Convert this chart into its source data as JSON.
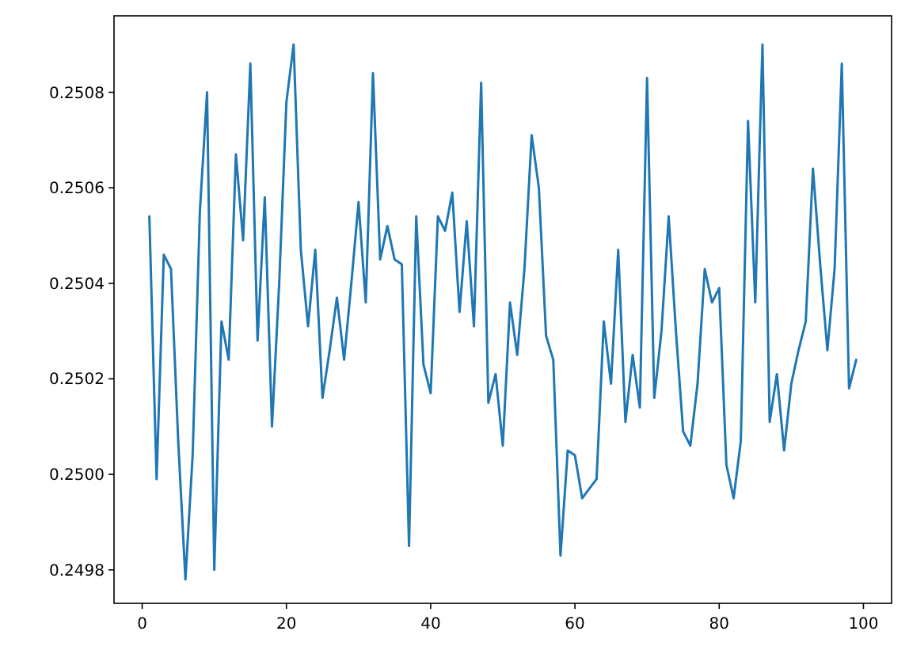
{
  "chart_data": {
    "type": "line",
    "x": [
      1,
      2,
      3,
      4,
      5,
      6,
      7,
      8,
      9,
      10,
      11,
      12,
      13,
      14,
      15,
      16,
      17,
      18,
      19,
      20,
      21,
      22,
      23,
      24,
      25,
      26,
      27,
      28,
      29,
      30,
      31,
      32,
      33,
      34,
      35,
      36,
      37,
      38,
      39,
      40,
      41,
      42,
      43,
      44,
      45,
      46,
      47,
      48,
      49,
      50,
      51,
      52,
      53,
      54,
      55,
      56,
      57,
      58,
      59,
      60,
      61,
      62,
      63,
      64,
      65,
      66,
      67,
      68,
      69,
      70,
      71,
      72,
      73,
      74,
      75,
      76,
      77,
      78,
      79,
      80,
      81,
      82,
      83,
      84,
      85,
      86,
      87,
      88,
      89,
      90,
      91,
      92,
      93,
      94,
      95,
      96,
      97,
      98,
      99
    ],
    "series": [
      {
        "color": "#1f77b4",
        "values": [
          0.25054,
          0.24999,
          0.25046,
          0.25043,
          0.25007,
          0.24978,
          0.25004,
          0.25055,
          0.2508,
          0.2498,
          0.25032,
          0.25024,
          0.25067,
          0.25049,
          0.25086,
          0.25028,
          0.25058,
          0.2501,
          0.2504,
          0.25078,
          0.2509,
          0.25047,
          0.25031,
          0.25047,
          0.25016,
          0.25026,
          0.25037,
          0.25024,
          0.2504,
          0.25057,
          0.25036,
          0.25084,
          0.25045,
          0.25052,
          0.25045,
          0.25044,
          0.24985,
          0.25054,
          0.25023,
          0.25017,
          0.25054,
          0.25051,
          0.25059,
          0.25034,
          0.25053,
          0.25031,
          0.25082,
          0.25015,
          0.25021,
          0.25006,
          0.25036,
          0.25025,
          0.25043,
          0.25071,
          0.2506,
          0.25029,
          0.25024,
          0.24983,
          0.25005,
          0.25004,
          0.24995,
          0.24997,
          0.24999,
          0.25032,
          0.25019,
          0.25047,
          0.25011,
          0.25025,
          0.25014,
          0.25083,
          0.25016,
          0.2503,
          0.25054,
          0.2503,
          0.25009,
          0.25006,
          0.25019,
          0.25043,
          0.25036,
          0.25039,
          0.25002,
          0.24995,
          0.25007,
          0.25074,
          0.25036,
          0.2509,
          0.25011,
          0.25021,
          0.25005,
          0.25019,
          0.25026,
          0.25032,
          0.25064,
          0.25044,
          0.25026,
          0.25043,
          0.25086,
          0.25018,
          0.25024
        ]
      }
    ],
    "xlim": [
      -3.9,
      103.9
    ],
    "ylim": [
      0.24973,
      0.25096
    ],
    "xticks": [
      0,
      20,
      40,
      60,
      80,
      100
    ],
    "yticks": [
      0.2498,
      {
        "value": 0.25,
        "label": "0.2500"
      },
      0.2502,
      0.2504,
      0.2506,
      0.2508
    ],
    "grid": false,
    "line_style": "solid",
    "marker": "none"
  }
}
